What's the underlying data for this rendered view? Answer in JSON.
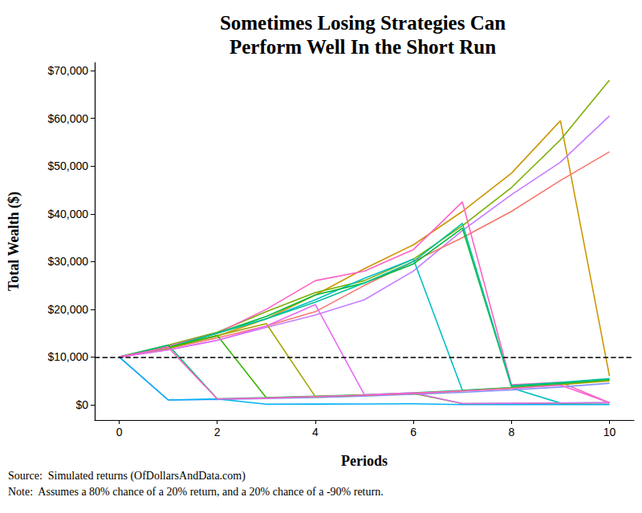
{
  "chart_data": {
    "type": "line",
    "title": "Sometimes Losing Strategies Can\nPerform Well In the Short Run",
    "x_label": "Periods",
    "y_label": "Total Wealth ($)",
    "source": "Source:  Simulated returns (OfDollarsAndData.com)",
    "note": "Note:  Assumes a 80% chance of a 20% return, and a 20% chance of a -90% return.",
    "x": [
      0,
      1,
      2,
      3,
      4,
      5,
      6,
      7,
      8,
      9,
      10
    ],
    "xlim": [
      -0.5,
      10.5
    ],
    "xticks": [
      0,
      2,
      4,
      6,
      8,
      10
    ],
    "ylim": [
      -3200,
      71700
    ],
    "yticks": [
      {
        "value": 0,
        "label": "$0"
      },
      {
        "value": 10000,
        "label": "$10,000"
      },
      {
        "value": 20000,
        "label": "$20,000"
      },
      {
        "value": 30000,
        "label": "$30,000"
      },
      {
        "value": 40000,
        "label": "$40,000"
      },
      {
        "value": 50000,
        "label": "$50,000"
      },
      {
        "value": 60000,
        "label": "$60,000"
      },
      {
        "value": 70000,
        "label": "$70,000"
      }
    ],
    "grid": false,
    "hline": {
      "value": 10000,
      "color": "#000000",
      "line_style": "dashed"
    },
    "series": [
      {
        "color": "#CD9600",
        "values": [
          10000,
          12000,
          14400,
          18000,
          23000,
          28500,
          33500,
          40500,
          48500,
          59500,
          6000
        ]
      },
      {
        "color": "#7CAE00",
        "values": [
          10000,
          12500,
          15200,
          19500,
          23500,
          26000,
          30500,
          37500,
          45500,
          55500,
          68000
        ]
      },
      {
        "color": "#C77CFF",
        "values": [
          10000,
          11500,
          13500,
          16200,
          18800,
          22000,
          28000,
          36500,
          44000,
          50800,
          60500
        ]
      },
      {
        "color": "#F8766D",
        "values": [
          10000,
          11800,
          14000,
          16500,
          19500,
          25000,
          30000,
          35000,
          40500,
          47000,
          53000
        ]
      },
      {
        "color": "#FF61C3",
        "values": [
          10000,
          12300,
          15000,
          20000,
          26000,
          28000,
          32500,
          42500,
          4200,
          4700,
          400
        ]
      },
      {
        "color": "#00BFC4",
        "values": [
          10000,
          12000,
          15000,
          18000,
          22000,
          26500,
          30500,
          3000,
          3500,
          350,
          400
        ]
      },
      {
        "color": "#00BA38",
        "values": [
          10000,
          12000,
          15000,
          18500,
          23000,
          25500,
          29500,
          37000,
          3800,
          4500,
          5300
        ]
      },
      {
        "color": "#00C19A",
        "values": [
          10000,
          12000,
          15000,
          18000,
          21500,
          25500,
          30000,
          38000,
          4000,
          4700,
          5500
        ]
      },
      {
        "color": "#8494FF",
        "values": [
          10000,
          1000,
          1100,
          1300,
          1500,
          1800,
          2200,
          2600,
          3100,
          3700,
          4500
        ]
      },
      {
        "color": "#00B0F6",
        "values": [
          10000,
          1000,
          1200,
          120,
          140,
          170,
          200,
          25,
          30,
          36,
          43
        ]
      },
      {
        "color": "#00BE67",
        "values": [
          10000,
          12500,
          1250,
          1500,
          1800,
          2100,
          2500,
          3000,
          3600,
          4300,
          5200
        ]
      },
      {
        "color": "#A3A500",
        "values": [
          10000,
          11800,
          14500,
          17000,
          1700,
          2000,
          2400,
          2900,
          3500,
          4200,
          5000
        ]
      },
      {
        "color": "#39B600",
        "values": [
          10000,
          12000,
          14500,
          1450,
          1700,
          2000,
          2400,
          240,
          290,
          350,
          420
        ]
      },
      {
        "color": "#E76BF3",
        "values": [
          10000,
          11500,
          13500,
          16500,
          21000,
          2100,
          2500,
          250,
          300,
          360,
          430
        ]
      },
      {
        "color": "#FD61D1",
        "values": [
          10000,
          12000,
          1200,
          1400,
          1700,
          2000,
          2400,
          2900,
          3400,
          4100,
          410
        ]
      }
    ]
  }
}
